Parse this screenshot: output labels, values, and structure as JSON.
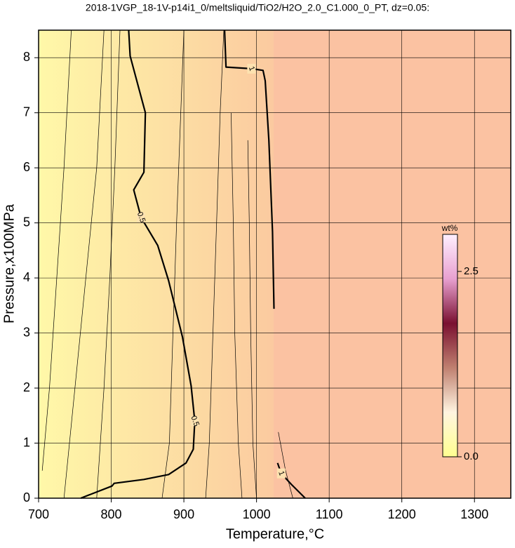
{
  "chart_data": {
    "type": "contour",
    "title": "2018-1VGP_18-1V-p14i1_0/meltsliquid/TiO2/H2O_2.0_C1.000_0_PT, dz=0.05:",
    "x_label": "Temperature,°C",
    "y_label": "Pressure,x100MPa",
    "xlim": [
      700,
      1350
    ],
    "ylim": [
      0,
      8.5
    ],
    "xticks": [
      700,
      800,
      900,
      1000,
      1100,
      1200,
      1300
    ],
    "yticks": [
      0,
      1,
      2,
      3,
      4,
      5,
      6,
      7,
      8
    ],
    "grid": true,
    "contours": [
      {
        "level": 0.5,
        "x": [
          758,
          801,
          804,
          845,
          879,
          903,
          913,
          915,
          910,
          898,
          879,
          864,
          841,
          831,
          845,
          847,
          826,
          824
        ],
        "y": [
          0,
          0.22,
          0.27,
          0.34,
          0.43,
          0.64,
          0.89,
          1.4,
          2.04,
          2.93,
          3.95,
          4.59,
          5.1,
          5.6,
          5.92,
          7.0,
          8.03,
          8.5
        ]
      },
      {
        "level": 1,
        "x": [
          956,
          958,
          993,
          1009,
          1012,
          1017,
          1022,
          1024,
          null,
          1029,
          1034,
          1048,
          1067
        ],
        "y": [
          8.5,
          7.83,
          7.8,
          7.77,
          7.58,
          6.5,
          4.84,
          3.44,
          null,
          0.64,
          0.45,
          0.25,
          0
        ]
      }
    ],
    "thin_contours": [
      {
        "x": [
          705,
          715,
          725,
          735,
          745
        ],
        "y": [
          0.5,
          2,
          4,
          6,
          8.5
        ]
      },
      {
        "x": [
          735,
          750,
          765,
          780,
          790
        ],
        "y": [
          0,
          2,
          4,
          6,
          8.5
        ]
      },
      {
        "x": [
          780,
          790,
          798,
          805,
          812
        ],
        "y": [
          0,
          2,
          4,
          6,
          8.5
        ]
      },
      {
        "x": [
          870,
          880,
          885,
          890,
          900
        ],
        "y": [
          0,
          1,
          3,
          5,
          8.5
        ]
      },
      {
        "x": [
          930,
          935,
          940,
          945,
          950,
          955
        ],
        "y": [
          0,
          1,
          3,
          5,
          7,
          8.5
        ]
      },
      {
        "x": [
          980,
          975,
          970,
          968,
          965
        ],
        "y": [
          0,
          1,
          3,
          5,
          7
        ]
      },
      {
        "x": [
          1000,
          995,
          992,
          990,
          988
        ],
        "y": [
          0,
          1,
          3,
          5,
          6.5
        ]
      },
      {
        "x": [
          1050,
          1040,
          1030
        ],
        "y": [
          0,
          0.5,
          1.2
        ]
      }
    ],
    "line_color": "#000000",
    "colorbar": {
      "label": "wt%",
      "lim": [
        0,
        3
      ],
      "ticks": [
        {
          "value": 0,
          "label": "0.0"
        },
        2.5
      ],
      "colors": [
        "#ffff90",
        "#fff4e0",
        "#c08070",
        "#7a1030",
        "#e8a0d0",
        "#fff0ff"
      ]
    }
  }
}
